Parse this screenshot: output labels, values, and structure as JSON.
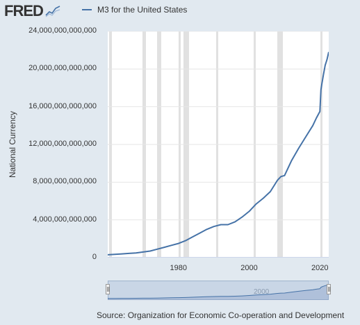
{
  "header": {
    "logo_text": "FRED",
    "logo_icon": "fred-graph-icon"
  },
  "chart_data": {
    "type": "line",
    "series": [
      {
        "name": "M3 for the United States",
        "color": "#4572a7",
        "x": [
          1960,
          1962,
          1964,
          1966,
          1968,
          1970,
          1972,
          1974,
          1976,
          1978,
          1980,
          1982,
          1984,
          1986,
          1988,
          1990,
          1992,
          1994,
          1996,
          1998,
          2000,
          2002,
          2004,
          2006,
          2008,
          2009,
          2010,
          2012,
          2014,
          2016,
          2018,
          2019,
          2020,
          2020.3,
          2020.6,
          2021,
          2021.5,
          2022,
          2022.5
        ],
        "values": [
          300000000000,
          350000000000,
          400000000000,
          450000000000,
          500000000000,
          600000000000,
          700000000000,
          900000000000,
          1100000000000,
          1300000000000,
          1500000000000,
          1800000000000,
          2200000000000,
          2600000000000,
          3000000000000,
          3300000000000,
          3500000000000,
          3500000000000,
          3800000000000,
          4300000000000,
          4900000000000,
          5700000000000,
          6300000000000,
          7000000000000,
          8200000000000,
          8600000000000,
          8700000000000,
          10300000000000,
          11600000000000,
          12800000000000,
          14000000000000,
          14800000000000,
          15500000000000,
          17800000000000,
          18500000000000,
          19400000000000,
          20400000000000,
          21000000000000,
          21800000000000
        ]
      }
    ],
    "xlim": [
      1960,
      2022.5
    ],
    "ylim": [
      0,
      24000000000000
    ],
    "yticks": [
      0,
      4000000000000,
      8000000000000,
      12000000000000,
      16000000000000,
      20000000000000,
      24000000000000
    ],
    "ytick_labels": [
      "0",
      "4,000,000,000,000",
      "8,000,000,000,000",
      "12,000,000,000,000",
      "16,000,000,000,000",
      "20,000,000,000,000",
      "24,000,000,000,000"
    ],
    "xticks": [
      1980,
      2000,
      2020
    ],
    "xtick_labels": [
      "1980",
      "2000",
      "2020"
    ],
    "xlabel": "",
    "ylabel": "National Currency",
    "title": "",
    "recessions": [
      [
        1960.3,
        1961.1
      ],
      [
        1969.9,
        1970.9
      ],
      [
        1973.9,
        1975.2
      ],
      [
        1980.0,
        1980.5
      ],
      [
        1981.5,
        1982.9
      ],
      [
        1990.6,
        1991.2
      ],
      [
        2001.2,
        2001.9
      ],
      [
        2007.9,
        2009.5
      ],
      [
        2020.1,
        2020.4
      ]
    ],
    "grid": true,
    "legend": "top-left",
    "navigator_label": "2000"
  },
  "footer": {
    "source": "Source: Organization for Economic Co-operation and Development"
  }
}
